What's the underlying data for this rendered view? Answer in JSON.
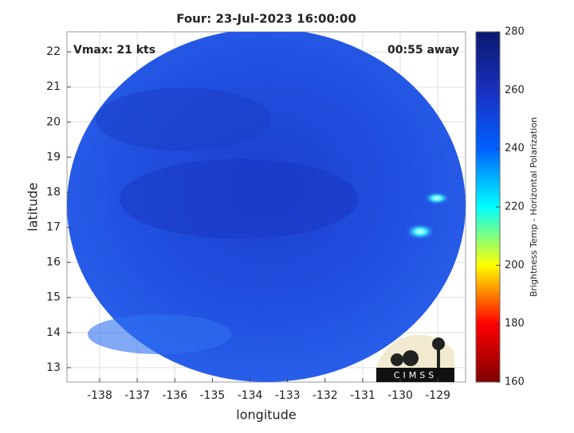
{
  "chart_data": {
    "type": "image",
    "title": "Four: 23-Jul-2023 16:00:00",
    "xlabel": "longitude",
    "ylabel": "latitude",
    "xlim": [
      -138.87,
      -128.26
    ],
    "ylim": [
      12.59,
      22.57
    ],
    "xticks": [
      -138,
      -137,
      -136,
      -135,
      -134,
      -133,
      -132,
      -131,
      -130,
      -129
    ],
    "yticks": [
      13,
      14,
      15,
      16,
      17,
      18,
      19,
      20,
      21,
      22
    ],
    "grid": true,
    "annotations": [
      "Vmax: 21 kts",
      "00:55 away"
    ],
    "logo": "CIMSS",
    "colorbar": {
      "label": "Brightness Temp - Horizontal Polarization",
      "lim": [
        160,
        280
      ],
      "ticks": [
        160,
        180,
        200,
        220,
        240,
        260,
        280
      ],
      "colormap": [
        "#7f0000",
        "#ff0000",
        "#ffff00",
        "#00ffff",
        "#0060ff",
        "#1a2fbf",
        "#0a1a6e"
      ]
    }
  }
}
